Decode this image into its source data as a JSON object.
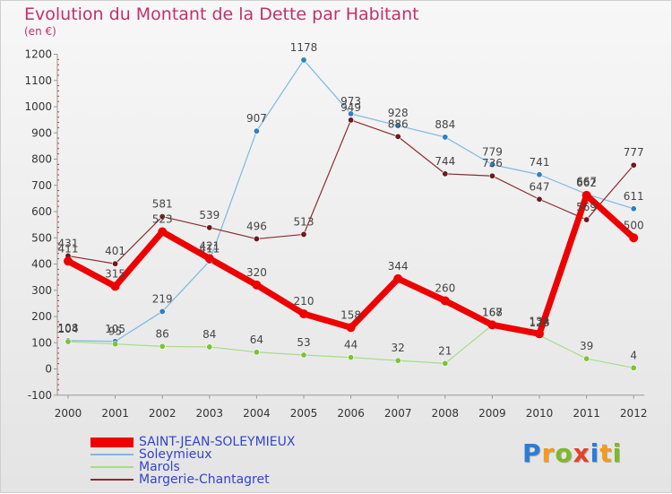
{
  "title": "Evolution du Montant de la Dette par Habitant",
  "subtitle": "(en €)",
  "logo": {
    "text": "Proxiti",
    "letter_colors": [
      "#2e7bd6",
      "#f39a1e",
      "#7fb929",
      "#e0442a",
      "#2e7bd6",
      "#f39a1e",
      "#7fb929"
    ]
  },
  "chart_data": {
    "type": "line",
    "x": [
      "2000",
      "2001",
      "2002",
      "2003",
      "2004",
      "2005",
      "2006",
      "2007",
      "2008",
      "2009",
      "2010",
      "2011",
      "2012"
    ],
    "ylim": [
      -100,
      1200
    ],
    "yticks": [
      "-100",
      "0",
      "100",
      "200",
      "300",
      "400",
      "500",
      "600",
      "700",
      "800",
      "900",
      "1000",
      "1100",
      "1200"
    ],
    "grid": false,
    "legend_position": "bottom-left",
    "series": [
      {
        "name": "SAINT-JEAN-SOLEYMIEUX",
        "color": "#ee0000",
        "marker": "#ee0000",
        "values": [
          411,
          315,
          523,
          421,
          320,
          210,
          158,
          344,
          260,
          168,
          134,
          662,
          500
        ],
        "labels": [
          "411",
          "315",
          "523",
          "421",
          "320",
          "210",
          "158",
          "344",
          "260",
          "168",
          "134",
          "662",
          "500"
        ]
      },
      {
        "name": "Soleymieux",
        "color": "#7fb8e0",
        "marker": "#2f7fc2",
        "values": [
          108,
          105,
          219,
          411,
          907,
          1178,
          973,
          928,
          884,
          779,
          741,
          667,
          611
        ],
        "labels": [
          "108",
          "105",
          "219",
          "411",
          "907",
          "1178",
          "973",
          "928",
          "884",
          "779",
          "741",
          "667",
          "611"
        ]
      },
      {
        "name": "Marols",
        "color": "#a6dd8a",
        "marker": "#7cc234",
        "values": [
          104,
          95,
          86,
          84,
          64,
          53,
          44,
          32,
          21,
          167,
          128,
          39,
          4
        ],
        "labels": [
          "104",
          "95",
          "86",
          "84",
          "64",
          "53",
          "44",
          "32",
          "21",
          "167",
          "128",
          "39",
          "4"
        ]
      },
      {
        "name": "Margerie-Chantagret",
        "color": "#8a2e2e",
        "marker": "#6b1a1a",
        "values": [
          431,
          401,
          581,
          539,
          496,
          513,
          949,
          886,
          744,
          736,
          647,
          569,
          777
        ],
        "labels": [
          "431",
          "401",
          "581",
          "539",
          "496",
          "513",
          "949",
          "886",
          "744",
          "736",
          "647",
          "569",
          "777"
        ]
      }
    ]
  }
}
